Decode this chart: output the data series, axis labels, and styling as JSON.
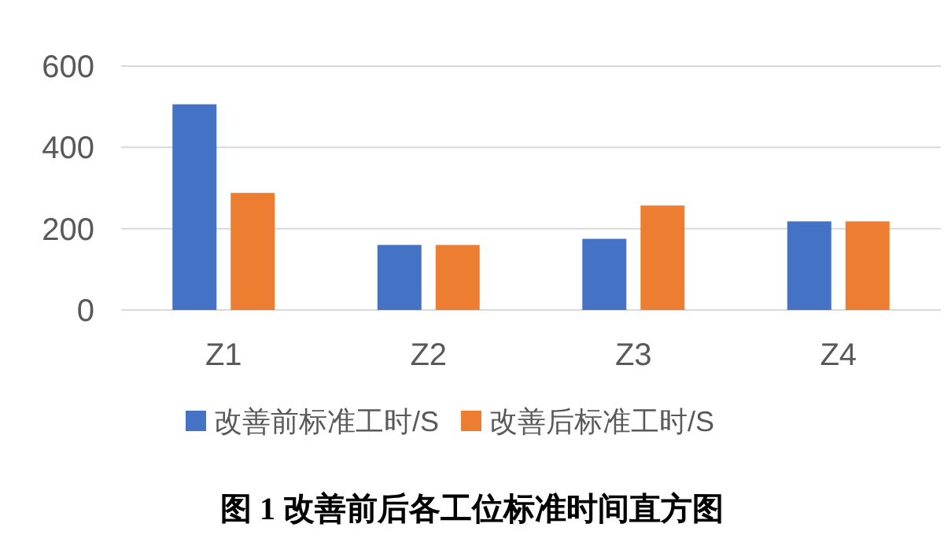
{
  "chart_data": {
    "type": "bar",
    "title": "图 1  改善前后各工位标准时间直方图",
    "categories": [
      "Z1",
      "Z2",
      "Z3",
      "Z4"
    ],
    "series": [
      {
        "name": "改善前标准工时/S",
        "color": "#4472c4",
        "values": [
          506,
          160,
          175,
          218
        ]
      },
      {
        "name": "改善后标准工时/S",
        "color": "#ed7d31",
        "values": [
          288,
          160,
          257,
          218
        ]
      }
    ],
    "ylim": [
      0,
      600
    ],
    "yticks": [
      0,
      200,
      400,
      600
    ],
    "grid": "y",
    "legend": "bottom"
  }
}
